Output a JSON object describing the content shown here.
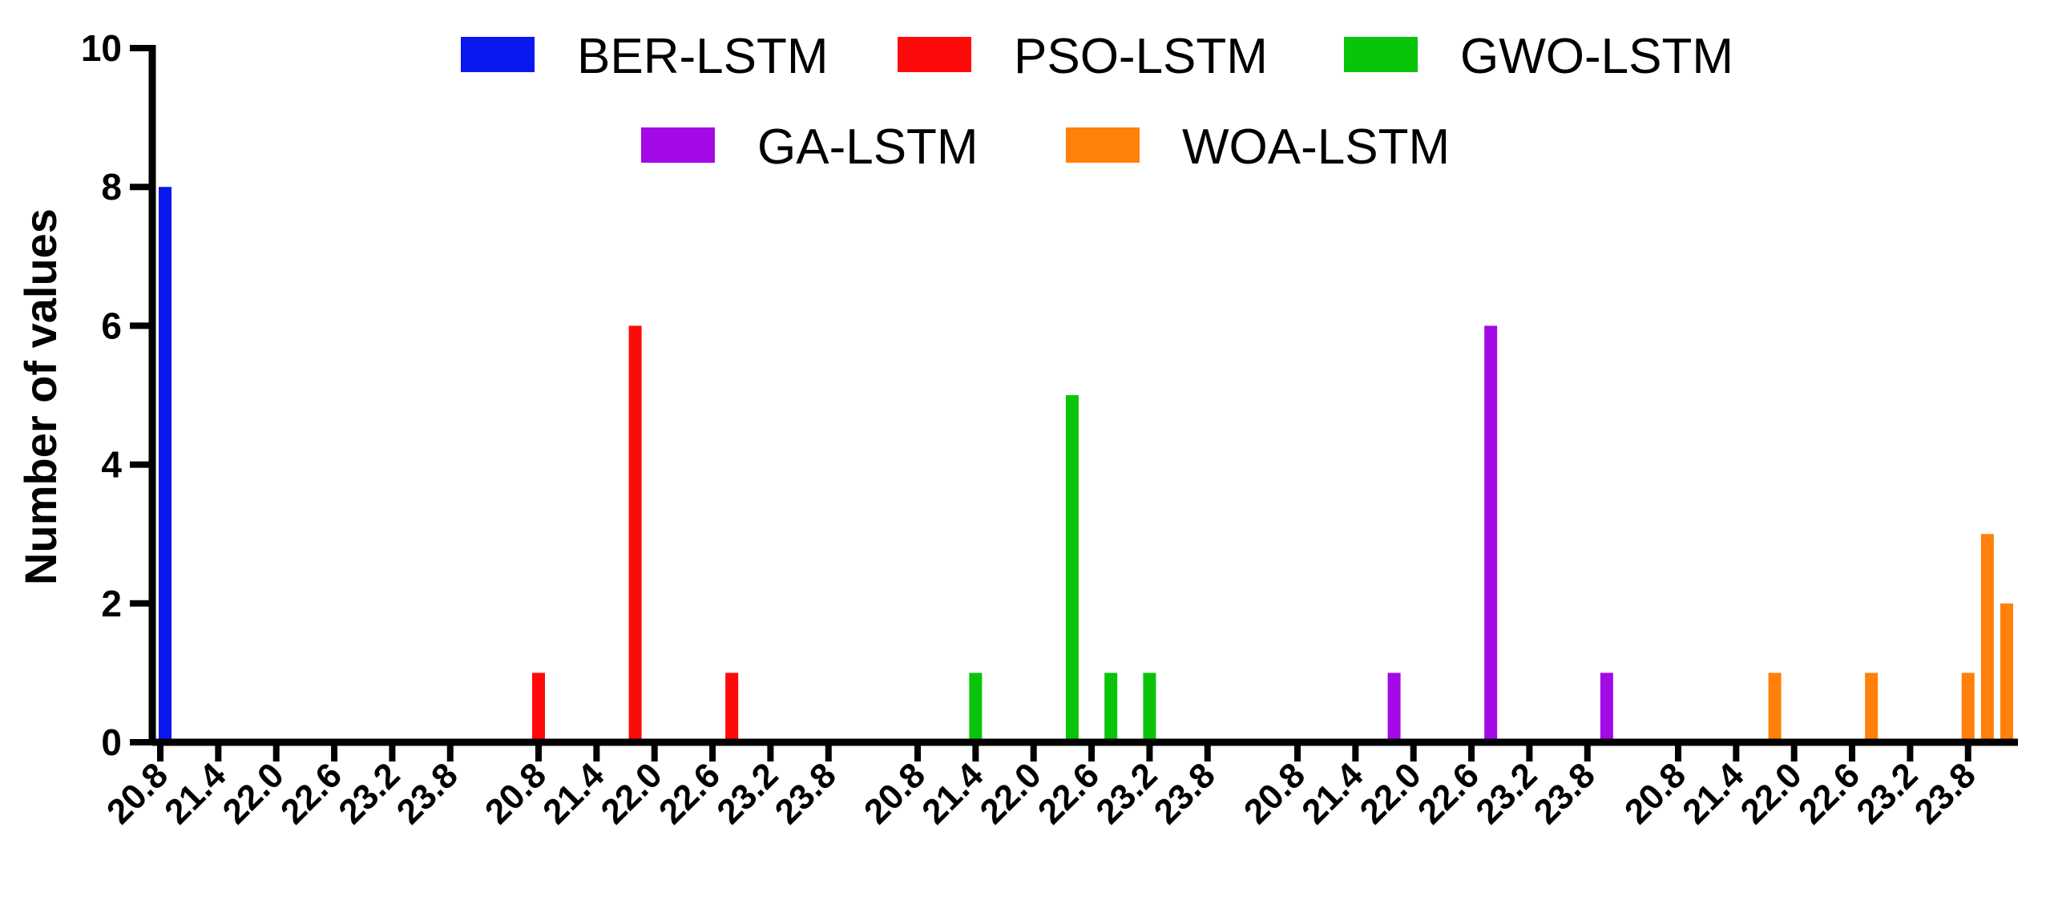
{
  "chart_data": {
    "type": "bar",
    "title": "",
    "xlabel": "",
    "ylabel": "Number of values",
    "ylim": [
      0,
      10
    ],
    "yticks": [
      0,
      2,
      4,
      6,
      8,
      10
    ],
    "grid": false,
    "legend_position": "top",
    "bin_labels": [
      "20.8",
      "21.4",
      "22.0",
      "22.6",
      "23.2",
      "23.8"
    ],
    "series": [
      {
        "name": "BER-LSTM",
        "color": "#0a18f0",
        "tick_labels": [
          "20.8",
          "21.4",
          "22.0",
          "22.6",
          "23.2",
          "23.8"
        ],
        "bars": [
          {
            "x": 20.85,
            "value": 8
          }
        ]
      },
      {
        "name": "PSO-LSTM",
        "color": "#ff0a0a",
        "tick_labels": [
          "20.8",
          "21.4",
          "22.0",
          "22.6",
          "23.2",
          "23.8"
        ],
        "bars": [
          {
            "x": 20.8,
            "value": 1
          },
          {
            "x": 21.8,
            "value": 6
          },
          {
            "x": 22.8,
            "value": 1
          }
        ]
      },
      {
        "name": "GWO-LSTM",
        "color": "#0ac40a",
        "tick_labels": [
          "20.8",
          "21.4",
          "22.0",
          "22.6",
          "23.2",
          "23.8"
        ],
        "bars": [
          {
            "x": 21.4,
            "value": 1
          },
          {
            "x": 22.4,
            "value": 5
          },
          {
            "x": 22.8,
            "value": 1
          },
          {
            "x": 23.2,
            "value": 1
          }
        ]
      },
      {
        "name": "GA-LSTM",
        "color": "#a30ae6",
        "tick_labels": [
          "20.8",
          "21.4",
          "22.0",
          "22.6",
          "23.2",
          "23.8"
        ],
        "bars": [
          {
            "x": 21.8,
            "value": 1
          },
          {
            "x": 22.8,
            "value": 6
          },
          {
            "x": 24.0,
            "value": 1
          }
        ]
      },
      {
        "name": "WOA-LSTM",
        "color": "#ff800a",
        "tick_labels": [
          "20.8",
          "21.4",
          "22.0",
          "22.6",
          "23.2",
          "23.8"
        ],
        "bars": [
          {
            "x": 21.8,
            "value": 1
          },
          {
            "x": 22.8,
            "value": 1
          },
          {
            "x": 23.8,
            "value": 1
          },
          {
            "x": 24.0,
            "value": 3
          },
          {
            "x": 24.2,
            "value": 2
          }
        ]
      }
    ]
  }
}
